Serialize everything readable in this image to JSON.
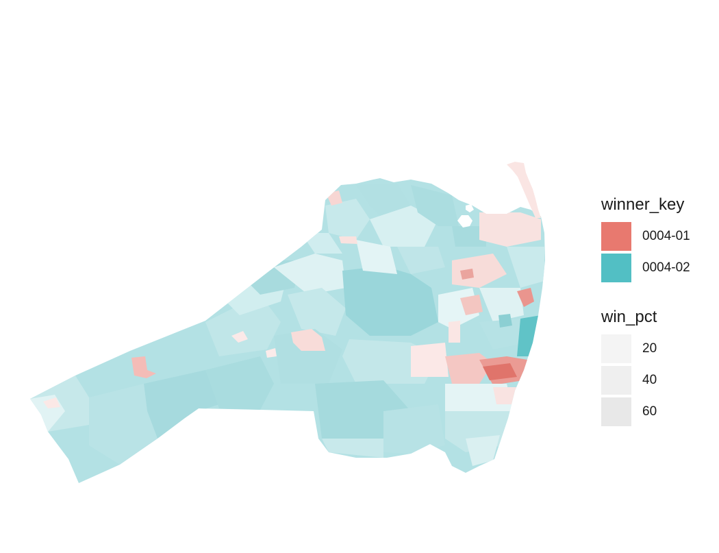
{
  "legend": {
    "winner_key": {
      "title": "winner_key",
      "items": [
        {
          "label": "0004-01",
          "color": "#e8796f"
        },
        {
          "label": "0004-02",
          "color": "#52bfc4"
        }
      ]
    },
    "win_pct": {
      "title": "win_pct",
      "items": [
        {
          "label": "20",
          "color": "#f4f4f4"
        },
        {
          "label": "40",
          "color": "#efefef"
        },
        {
          "label": "60",
          "color": "#e8e8e8"
        }
      ]
    }
  },
  "colors": {
    "party_01": "#e8796f",
    "party_02": "#52bfc4",
    "background": "#ffffff"
  }
}
